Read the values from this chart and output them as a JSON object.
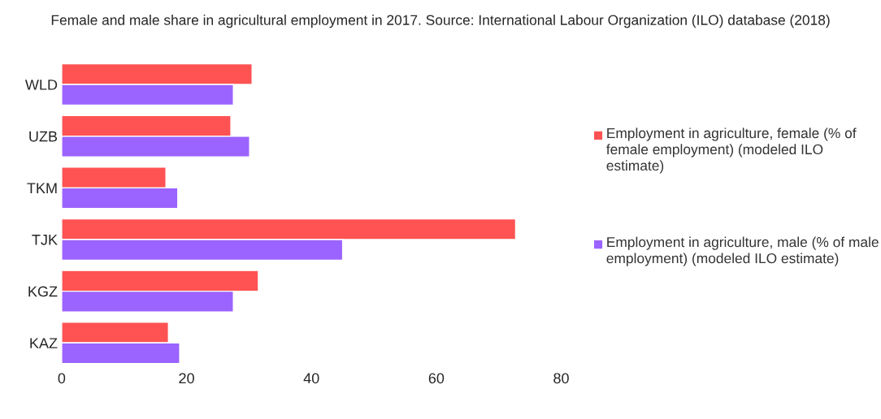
{
  "chart_data": {
    "type": "bar",
    "orientation": "horizontal",
    "title": "Female and male share in agricultural employment in 2017. Source: International Labour Organization (ILO) database (2018)",
    "categories": [
      "WLD",
      "UZB",
      "TKM",
      "TJK",
      "KGZ",
      "KAZ"
    ],
    "series": [
      {
        "name": "Employment in agriculture, female (% of female employment) (modeled ILO estimate)",
        "color": "#ff5252",
        "values": [
          30.5,
          27.1,
          16.7,
          72.7,
          31.5,
          17.1
        ]
      },
      {
        "name": "Employment in agriculture, male (% of male employment) (modeled ILO estimate)",
        "color": "#9b63ff",
        "values": [
          27.5,
          30.1,
          18.6,
          45.0,
          27.5,
          18.9
        ]
      }
    ],
    "xlim": [
      0,
      80
    ],
    "xticks": [
      0,
      20,
      40,
      60,
      80
    ],
    "grid": false,
    "legend": "right"
  }
}
